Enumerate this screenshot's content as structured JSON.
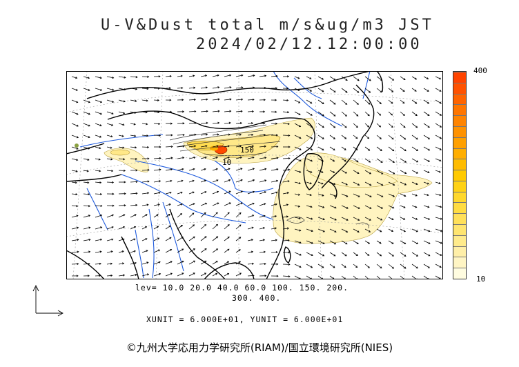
{
  "title": {
    "line1": "U-V&Dust total m/s&ug/m3 JST",
    "line2": "2024/02/12.12:00:00"
  },
  "map": {
    "contour_labels": [
      "150",
      "10"
    ],
    "colors": {
      "land_line": "#000000",
      "river": "#1e5adc",
      "grid": "#9a9a9a",
      "dust_light": "#fff4c0",
      "dust_mid": "#ffe070",
      "dust_high": "#ffb000",
      "dust_peak": "#ff4a00"
    }
  },
  "colorbar": {
    "max_label": "400",
    "min_label": "10",
    "colors": [
      "#fffce0",
      "#fff5c4",
      "#ffefa8",
      "#ffeb8c",
      "#ffe570",
      "#ffe05a",
      "#ffdc42",
      "#ffd82c",
      "#ffd214",
      "#ffca00",
      "#ffbc00",
      "#ffae00",
      "#ffa000",
      "#ff9200",
      "#ff8400",
      "#ff7600",
      "#ff6400",
      "#ff5200",
      "#ff4400"
    ]
  },
  "levels": {
    "line1": "lev= 10.0 20.0 40.0 60.0 100. 150. 200.",
    "line2": "300. 400."
  },
  "units": {
    "line": "XUNIT = 6.000E+01, YUNIT = 6.000E+01"
  },
  "copyright": "©九州大学応用力学研究所(RIAM)/国立環境研究所(NIES)"
}
